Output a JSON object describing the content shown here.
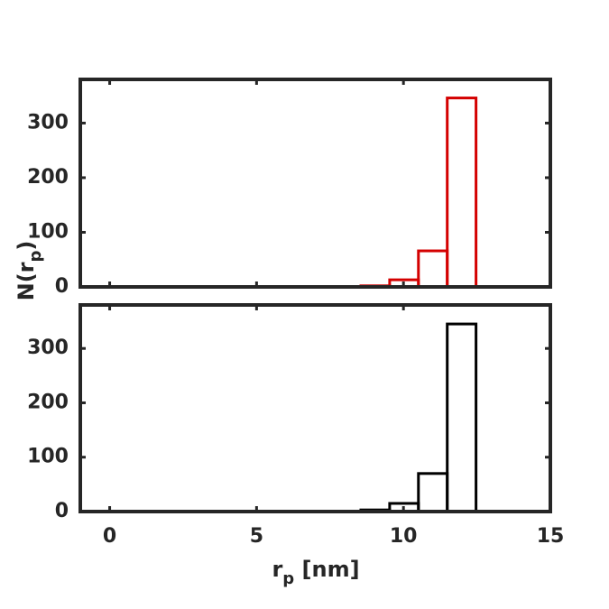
{
  "chart_data": [
    {
      "type": "histogram",
      "color": "#d40000",
      "bins": [
        8.55,
        9.53,
        10.51,
        11.49,
        12.47
      ],
      "values": [
        2,
        13,
        66,
        346
      ],
      "xlim": [
        -1,
        15
      ],
      "xticks": [
        0,
        5,
        10,
        15
      ],
      "ylim": [
        0,
        380
      ],
      "yticks": [
        0,
        100,
        200,
        300
      ],
      "y_label": [
        "N(r",
        "p",
        ")"
      ]
    },
    {
      "type": "histogram",
      "color": "#000000",
      "bins": [
        8.55,
        9.53,
        10.51,
        11.49,
        12.47
      ],
      "values": [
        3,
        15,
        70,
        345
      ],
      "xlim": [
        -1,
        15
      ],
      "xticks": [
        0,
        5,
        10,
        15
      ],
      "ylim": [
        0,
        380
      ],
      "yticks": [
        0,
        100,
        200,
        300
      ],
      "x_label": [
        "r",
        "p",
        " [nm]"
      ]
    }
  ]
}
